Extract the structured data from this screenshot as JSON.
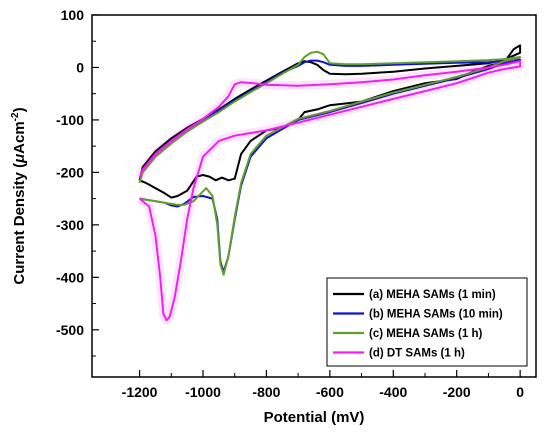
{
  "chart_data": {
    "type": "line",
    "xlabel": "Potential (mV)",
    "ylabel_main": "Current Density (",
    "ylabel_unit_mu": "μ",
    "ylabel_unit_rest": "Acm",
    "ylabel_exp": "-2",
    "ylabel_close": ")",
    "xlim": [
      -1350,
      50
    ],
    "ylim": [
      -590,
      100
    ],
    "xticks": [
      -1200,
      -1000,
      -800,
      -600,
      -400,
      -200,
      0
    ],
    "yticks": [
      100,
      0,
      -100,
      -200,
      -300,
      -400,
      -500
    ],
    "legend_position": "bottom-right",
    "series": [
      {
        "name": "(a) MEHA SAMs (1 min)",
        "color": "#000000",
        "x": [
          -1200,
          -1190,
          -1150,
          -1100,
          -1050,
          -1000,
          -950,
          -900,
          -850,
          -800,
          -750,
          -700,
          -680,
          -660,
          -640,
          -620,
          -600,
          -550,
          -500,
          -450,
          -400,
          -300,
          -200,
          -100,
          -50,
          0,
          0,
          -20,
          -50,
          -100,
          -150,
          -200,
          -300,
          -400,
          -500,
          -600,
          -640,
          -680,
          -700,
          -750,
          -800,
          -850,
          -880,
          -900,
          -920,
          -940,
          -960,
          -980,
          -1000,
          -1020,
          -1050,
          -1080,
          -1100,
          -1120,
          -1150,
          -1180,
          -1200
        ],
        "y": [
          -215,
          -190,
          -160,
          -135,
          -115,
          -98,
          -80,
          -60,
          -42,
          -25,
          -8,
          8,
          12,
          10,
          5,
          -5,
          -12,
          -13,
          -12,
          -10,
          -8,
          -2,
          3,
          8,
          15,
          28,
          42,
          35,
          10,
          3,
          -8,
          -22,
          -30,
          -45,
          -65,
          -72,
          -80,
          -85,
          -100,
          -115,
          -120,
          -140,
          -165,
          -212,
          -215,
          -210,
          -215,
          -208,
          -205,
          -208,
          -235,
          -245,
          -248,
          -240,
          -230,
          -220,
          -215
        ]
      },
      {
        "name": "(b) MEHA SAMs (10 min)",
        "color": "#1010d0",
        "x": [
          -1200,
          -1190,
          -1150,
          -1100,
          -1050,
          -1000,
          -950,
          -900,
          -850,
          -800,
          -750,
          -700,
          -680,
          -660,
          -640,
          -620,
          -600,
          -550,
          -500,
          -450,
          -400,
          -300,
          -200,
          -100,
          -50,
          0,
          0,
          -20,
          -50,
          -100,
          -200,
          -300,
          -400,
          -500,
          -600,
          -700,
          -800,
          -850,
          -880,
          -900,
          -920,
          -935,
          -945,
          -955,
          -970,
          -1000,
          -1030,
          -1060,
          -1080,
          -1100,
          -1120,
          -1150,
          -1200
        ],
        "y": [
          -215,
          -195,
          -165,
          -140,
          -118,
          -100,
          -82,
          -63,
          -45,
          -28,
          -10,
          3,
          10,
          13,
          13,
          10,
          5,
          3,
          3,
          4,
          5,
          7,
          9,
          10,
          12,
          15,
          15,
          12,
          8,
          -3,
          -20,
          -35,
          -50,
          -68,
          -85,
          -100,
          -135,
          -170,
          -225,
          -290,
          -360,
          -390,
          -370,
          -290,
          -250,
          -245,
          -247,
          -260,
          -265,
          -263,
          -258,
          -255,
          -250
        ]
      },
      {
        "name": "(c) MEHA SAMs (1 h)",
        "color": "#5fa02a",
        "x": [
          -1200,
          -1190,
          -1150,
          -1100,
          -1050,
          -1000,
          -950,
          -900,
          -850,
          -800,
          -750,
          -700,
          -680,
          -660,
          -640,
          -620,
          -600,
          -550,
          -500,
          -450,
          -400,
          -300,
          -200,
          -100,
          -50,
          0,
          0,
          -20,
          -50,
          -100,
          -200,
          -300,
          -400,
          -500,
          -600,
          -700,
          -800,
          -850,
          -880,
          -900,
          -920,
          -935,
          -945,
          -955,
          -970,
          -990,
          -1030,
          -1060,
          -1080,
          -1100,
          -1120,
          -1150,
          -1200
        ],
        "y": [
          -220,
          -200,
          -170,
          -145,
          -122,
          -103,
          -85,
          -65,
          -47,
          -30,
          -12,
          5,
          20,
          28,
          30,
          25,
          8,
          6,
          6,
          7,
          8,
          10,
          12,
          14,
          16,
          20,
          20,
          16,
          12,
          0,
          -18,
          -33,
          -48,
          -65,
          -83,
          -98,
          -130,
          -165,
          -220,
          -285,
          -360,
          -395,
          -375,
          -300,
          -245,
          -230,
          -255,
          -262,
          -262,
          -260,
          -258,
          -255,
          -250
        ]
      },
      {
        "name": "(d) DT SAMs (1 h)",
        "color": "#ee22ee",
        "x": [
          -1200,
          -1190,
          -1150,
          -1100,
          -1050,
          -1000,
          -950,
          -920,
          -900,
          -880,
          -860,
          -840,
          -800,
          -700,
          -600,
          -500,
          -400,
          -300,
          -200,
          -100,
          -50,
          0,
          0,
          -20,
          -50,
          -100,
          -150,
          -200,
          -300,
          -400,
          -500,
          -600,
          -700,
          -800,
          -900,
          -950,
          -1000,
          -1030,
          -1050,
          -1070,
          -1090,
          -1105,
          -1115,
          -1125,
          -1135,
          -1150,
          -1170,
          -1200
        ],
        "y": [
          -210,
          -195,
          -165,
          -140,
          -118,
          -98,
          -75,
          -55,
          -32,
          -28,
          -29,
          -30,
          -33,
          -35,
          -32,
          -28,
          -23,
          -15,
          -8,
          0,
          5,
          12,
          2,
          0,
          -3,
          -10,
          -20,
          -30,
          -45,
          -60,
          -75,
          -90,
          -105,
          -120,
          -130,
          -140,
          -170,
          -230,
          -290,
          -370,
          -440,
          -475,
          -482,
          -470,
          -400,
          -320,
          -265,
          -250
        ]
      }
    ]
  }
}
